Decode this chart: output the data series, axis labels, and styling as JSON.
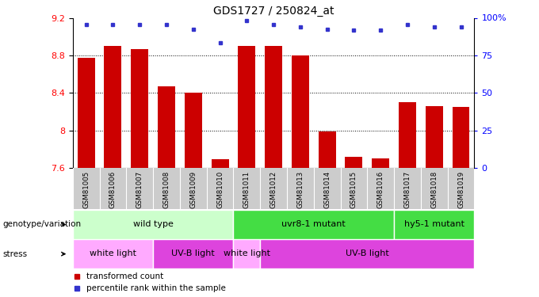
{
  "title": "GDS1727 / 250824_at",
  "samples": [
    "GSM81005",
    "GSM81006",
    "GSM81007",
    "GSM81008",
    "GSM81009",
    "GSM81010",
    "GSM81011",
    "GSM81012",
    "GSM81013",
    "GSM81014",
    "GSM81015",
    "GSM81016",
    "GSM81017",
    "GSM81018",
    "GSM81019"
  ],
  "bar_values": [
    8.77,
    8.9,
    8.87,
    8.47,
    8.4,
    7.69,
    8.9,
    8.9,
    8.8,
    7.99,
    7.72,
    7.7,
    8.3,
    8.26,
    8.25
  ],
  "pct_values": [
    9.13,
    9.13,
    9.13,
    9.13,
    9.08,
    8.93,
    9.17,
    9.13,
    9.1,
    9.08,
    9.07,
    9.07,
    9.13,
    9.1,
    9.1
  ],
  "ylim": [
    7.6,
    9.2
  ],
  "y_ticks": [
    7.6,
    8.0,
    8.4,
    8.8,
    9.2
  ],
  "y2_ticks": [
    0,
    25,
    50,
    75,
    100
  ],
  "bar_color": "#cc0000",
  "dot_color": "#3333cc",
  "genotype_groups": [
    {
      "label": "wild type",
      "start": 0,
      "end": 6,
      "color": "#ccffcc"
    },
    {
      "label": "uvr8-1 mutant",
      "start": 6,
      "end": 12,
      "color": "#44dd44"
    },
    {
      "label": "hy5-1 mutant",
      "start": 12,
      "end": 15,
      "color": "#44dd44"
    }
  ],
  "stress_groups": [
    {
      "label": "white light",
      "start": 0,
      "end": 3,
      "color": "#ffaaff"
    },
    {
      "label": "UV-B light",
      "start": 3,
      "end": 6,
      "color": "#dd44dd"
    },
    {
      "label": "white light",
      "start": 6,
      "end": 7,
      "color": "#ffaaff"
    },
    {
      "label": "UV-B light",
      "start": 7,
      "end": 15,
      "color": "#dd44dd"
    }
  ],
  "legend_red_label": "transformed count",
  "legend_blue_label": "percentile rank within the sample",
  "xlabel_genotype": "genotype/variation",
  "xlabel_stress": "stress",
  "figsize": [
    6.8,
    3.75
  ],
  "dpi": 100
}
